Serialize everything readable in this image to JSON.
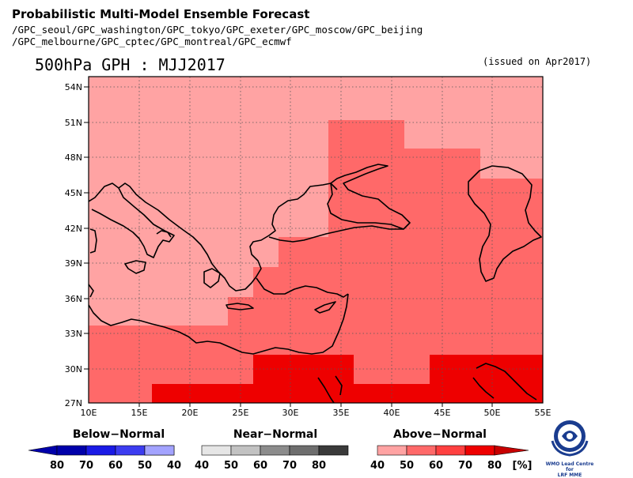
{
  "header": {
    "title": "Probabilistic Multi-Model Ensemble Forecast",
    "models_line1": "/GPC_seoul/GPC_washington/GPC_tokyo/GPC_exeter/GPC_moscow/GPC_beijing",
    "models_line2": "/GPC_melbourne/GPC_cptec/GPC_montreal/GPC_ecmwf"
  },
  "map": {
    "title": "500hPa GPH : MJJ2017",
    "issued": "(issued on Apr2017)",
    "lat_ticks": [
      "54N",
      "51N",
      "48N",
      "45N",
      "42N",
      "39N",
      "36N",
      "33N",
      "30N",
      "27N"
    ],
    "lon_ticks": [
      "10E",
      "15E",
      "20E",
      "25E",
      "30E",
      "35E",
      "40E",
      "45E",
      "50E",
      "55E"
    ],
    "extent": {
      "lon_min": 10,
      "lon_max": 55,
      "lat_min": 27,
      "lat_max": 55
    },
    "category_colors": {
      "above_40": "#ffa3a3",
      "above_50": "#ff6969",
      "above_60": "#ff4040",
      "above_70": "#ee0000"
    }
  },
  "legend": {
    "below": {
      "title": "Below−Normal",
      "labels": [
        "80",
        "70",
        "60",
        "50",
        "40"
      ],
      "colors": [
        "#0000aa",
        "#1a1ae6",
        "#3c3cf0",
        "#6b6bff",
        "#a3a3ff"
      ]
    },
    "near": {
      "title": "Near−Normal",
      "labels": [
        "40",
        "50",
        "60",
        "70",
        "80"
      ],
      "colors": [
        "#e6e6e6",
        "#c2c2c2",
        "#8c8c8c",
        "#6e6e6e",
        "#3a3a3a"
      ]
    },
    "above": {
      "title": "Above−Normal",
      "labels": [
        "40",
        "50",
        "60",
        "70",
        "80"
      ],
      "unit": "[%]",
      "colors": [
        "#ffa3a3",
        "#ff6969",
        "#ff4040",
        "#ee0000",
        "#c80000"
      ]
    }
  },
  "logo": {
    "line1": "WMO Lead Centre for",
    "line2": "LRF MME"
  }
}
